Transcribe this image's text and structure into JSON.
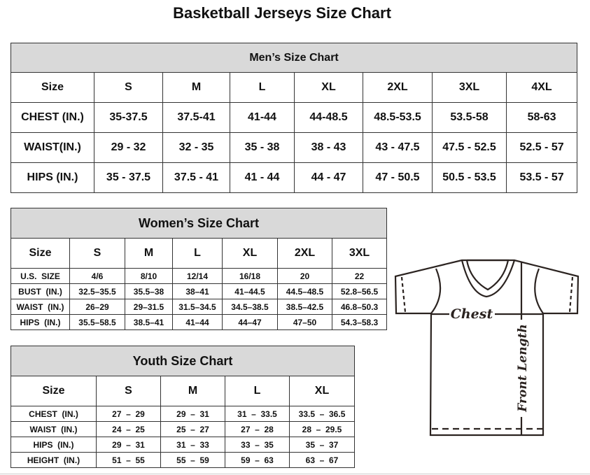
{
  "title": "Basketball Jerseys Size Chart",
  "men": {
    "caption": "Men’s Size Chart",
    "header": [
      "Size",
      "S",
      "M",
      "L",
      "XL",
      "2XL",
      "3XL",
      "4XL"
    ],
    "rows": [
      [
        "CHEST (IN.)",
        "35-37.5",
        "37.5-41",
        "41-44",
        "44-48.5",
        "48.5-53.5",
        "53.5-58",
        "58-63"
      ],
      [
        "WAIST(IN.)",
        "29 - 32",
        "32 - 35",
        "35 - 38",
        "38 - 43",
        "43 - 47.5",
        "47.5 - 52.5",
        "52.5 - 57"
      ],
      [
        "HIPS (IN.)",
        "35 - 37.5",
        "37.5 - 41",
        "41 - 44",
        "44 - 47",
        "47 - 50.5",
        "50.5 - 53.5",
        "53.5 - 57"
      ]
    ]
  },
  "women": {
    "caption": "Women’s Size Chart",
    "header": [
      "Size",
      "S",
      "M",
      "L",
      "XL",
      "2XL",
      "3XL"
    ],
    "rows": [
      [
        "U.S.  SIZE",
        "4/6",
        "8/10",
        "12/14",
        "16/18",
        "20",
        "22"
      ],
      [
        "BUST  (IN.)",
        "32.5–35.5",
        "35.5–38",
        "38–41",
        "41–44.5",
        "44.5–48.5",
        "52.8–56.5"
      ],
      [
        "WAIST  (IN.)",
        "26–29",
        "29–31.5",
        "31.5–34.5",
        "34.5–38.5",
        "38.5–42.5",
        "46.8–50.3"
      ],
      [
        "HIPS  (IN.)",
        "35.5–58.5",
        "38.5–41",
        "41–44",
        "44–47",
        "47–50",
        "54.3–58.3"
      ]
    ]
  },
  "youth": {
    "caption": "Youth Size Chart",
    "header": [
      "Size",
      "S",
      "M",
      "L",
      "XL"
    ],
    "rows": [
      [
        "CHEST  (IN.)",
        "27  –  29",
        "29  –  31",
        "31  –  33.5",
        "33.5  –  36.5"
      ],
      [
        "WAIST  (IN.)",
        "24  –  25",
        "25  –  27",
        "27  –  28",
        "28  –  29.5"
      ],
      [
        "HIPS  (IN.)",
        "29  –  31",
        "31  –  33",
        "33  –  35",
        "35  –  37"
      ],
      [
        "HEIGHT  (IN.)",
        "51  –  55",
        "55  –  59",
        "59  –  63",
        "63  –  67"
      ]
    ]
  },
  "diagram": {
    "chest_label": "Chest",
    "length_label": "Front Length"
  }
}
